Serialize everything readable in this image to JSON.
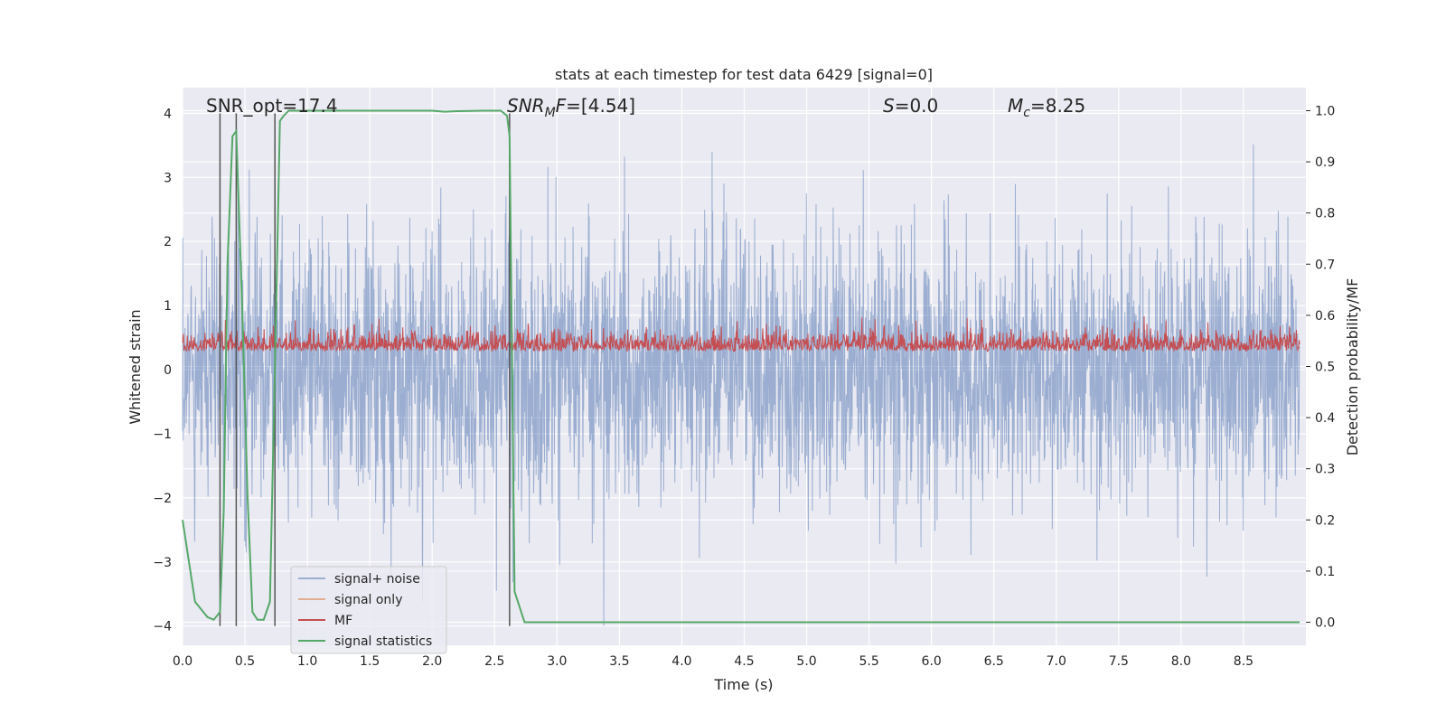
{
  "chart_data": {
    "type": "line",
    "title": "stats at each timestep for test data 6429 [signal=0]",
    "xlabel": "Time (s)",
    "ylabel": "Whitened strain",
    "y2label": "Detection probability/MF",
    "xlim": [
      0.0,
      9.0
    ],
    "ylim": [
      -4.3,
      4.4
    ],
    "y2lim": [
      -0.045,
      1.045
    ],
    "xticks": [
      "0.0",
      "0.5",
      "1.0",
      "1.5",
      "2.0",
      "2.5",
      "3.0",
      "3.5",
      "4.0",
      "4.5",
      "5.0",
      "5.5",
      "6.0",
      "6.5",
      "7.0",
      "7.5",
      "8.0",
      "8.5"
    ],
    "yticks": [
      "4",
      "3",
      "2",
      "1",
      "0",
      "−1",
      "−2",
      "−3",
      "−4"
    ],
    "y2ticks": [
      "1.0",
      "0.9",
      "0.8",
      "0.7",
      "0.6",
      "0.5",
      "0.4",
      "0.3",
      "0.2",
      "0.1",
      "0.0"
    ],
    "grid": true,
    "legend_position": "lower-left",
    "colors": {
      "background": "#EAEAF2",
      "signal_noise": "#4C72B0",
      "signal_only": "#DD8452",
      "mf": "#C44E52",
      "statistics": "#55A868",
      "vlines": "#555555"
    },
    "annotations": {
      "snr_opt": "SNR_opt=17.4",
      "snr_mf_value": "=[4.54]",
      "s_value": "=0.0",
      "mc_value": "=8.25"
    },
    "series": [
      {
        "name": "signal+ noise",
        "description_stat": "whitened strain noise, amplitude ~N(0,1), extremes approx ±4"
      },
      {
        "name": "signal only",
        "values": []
      },
      {
        "name": "MF",
        "axis": "right",
        "range": [
          0.5,
          0.62
        ]
      },
      {
        "name": "signal statistics",
        "axis": "right",
        "x": [
          0.0,
          0.05,
          0.1,
          0.2,
          0.25,
          0.3,
          0.33,
          0.36,
          0.4,
          0.43,
          0.48,
          0.52,
          0.56,
          0.6,
          0.65,
          0.7,
          0.74,
          0.78,
          0.81,
          0.85,
          0.9,
          1.2,
          1.6,
          2.0,
          2.1,
          2.2,
          2.4,
          2.55,
          2.6,
          2.62,
          2.66,
          2.74,
          3.0,
          4.0,
          5.0,
          6.0,
          7.0,
          8.0,
          8.95
        ],
        "values": [
          0.2,
          0.12,
          0.04,
          0.01,
          0.005,
          0.02,
          0.22,
          0.7,
          0.95,
          0.96,
          0.6,
          0.25,
          0.02,
          0.005,
          0.005,
          0.04,
          0.5,
          0.98,
          0.99,
          1.0,
          1.0,
          1.0,
          1.0,
          1.0,
          0.998,
          0.999,
          1.0,
          1.0,
          0.99,
          0.95,
          0.06,
          0.0,
          0.0,
          0.0,
          0.0,
          0.0,
          0.0,
          0.0,
          0.0
        ]
      }
    ],
    "vlines_x": [
      0.3,
      0.43,
      0.74,
      2.62
    ]
  }
}
